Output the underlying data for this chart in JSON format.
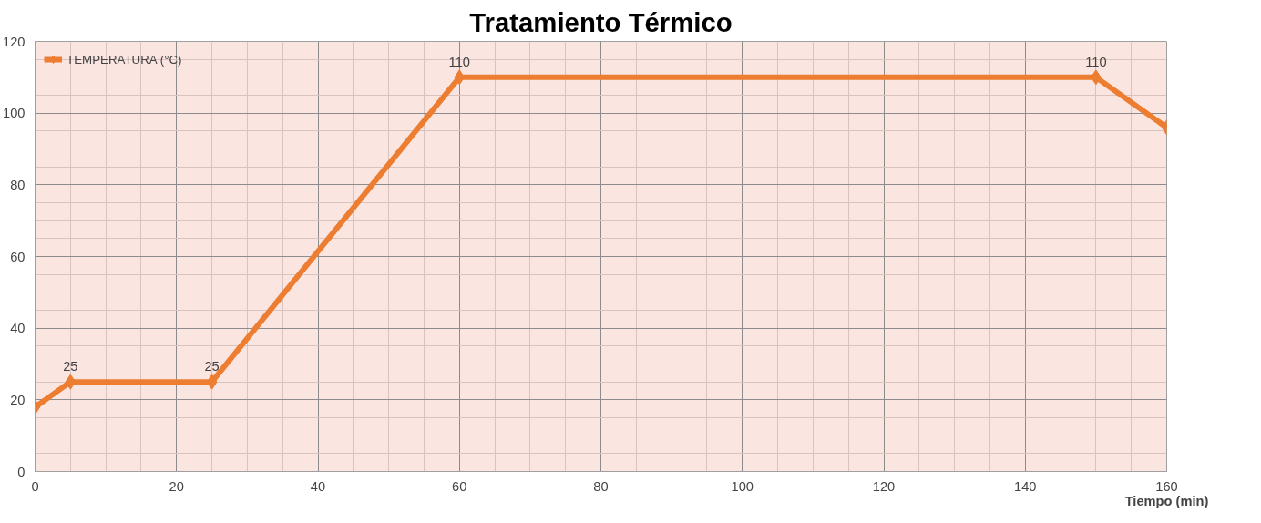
{
  "chart_data": {
    "type": "line",
    "title": "Tratamiento Térmico",
    "xlabel": "Tiempo (min)",
    "x": [
      0,
      5,
      25,
      60,
      150,
      160
    ],
    "series": [
      {
        "name": "TEMPERATURA (°C)",
        "color": "#ed7d31",
        "values": [
          18,
          25,
          25,
          110,
          110,
          96
        ],
        "value_labels": [
          null,
          "25",
          "25",
          "110",
          "110",
          null
        ]
      }
    ],
    "xlim": [
      0,
      160
    ],
    "ylim": [
      0,
      120
    ],
    "xticks": [
      0,
      20,
      40,
      60,
      80,
      100,
      120,
      140,
      160
    ],
    "yticks": [
      0,
      20,
      40,
      60,
      80,
      100,
      120
    ],
    "grid": true,
    "legend": "top left",
    "marker": "diamond",
    "line_style": "solid"
  }
}
